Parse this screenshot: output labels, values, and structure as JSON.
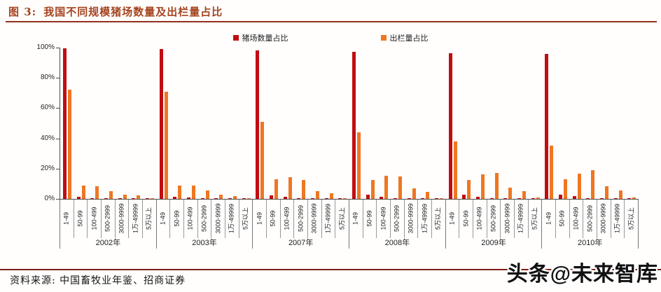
{
  "header": {
    "figure_label": "图 3:",
    "title": "我国不同规模猪场数量及出栏量占比"
  },
  "colors": {
    "title_text": "#A5431F",
    "title_rule": "#93301E",
    "bottom_rule": "#801E15",
    "farm_series": "#C00D12",
    "slaughter_series": "#EE7722",
    "axis": "#4d4d4d"
  },
  "legend": {
    "items": [
      {
        "label": "猪场数量占比",
        "color": "#C00D12"
      },
      {
        "label": "出栏量占比",
        "color": "#EE7722"
      }
    ]
  },
  "footer": {
    "source": "资料来源: 中国畜牧业年鉴、招商证券",
    "watermark": "头条@未来智库"
  },
  "chart_data": {
    "type": "bar",
    "title": "我国不同规模猪场数量及出栏量占比",
    "xlabel": "",
    "ylabel": "",
    "ylim": [
      0,
      100
    ],
    "yticks": [
      "0%",
      "20%",
      "40%",
      "60%",
      "80%",
      "100%"
    ],
    "grid": false,
    "legend_position": "top-center",
    "groups": [
      "2002年",
      "2003年",
      "2007年",
      "2008年",
      "2009年",
      "2010年"
    ],
    "categories": [
      "1-49",
      "50-99",
      "100-499",
      "500-2999",
      "3000-9999",
      "1万-49999",
      "5万以上"
    ],
    "series": [
      {
        "name": "猪场数量占比",
        "key": "farm-count-share",
        "color": "#C00D12",
        "values": [
          [
            99.5,
            1.2,
            0.6,
            0.3,
            0.2,
            0.1,
            0.05
          ],
          [
            99.0,
            1.5,
            0.8,
            0.4,
            0.2,
            0.1,
            0.05
          ],
          [
            98.0,
            2.5,
            1.2,
            0.5,
            0.2,
            0.1,
            0.05
          ],
          [
            97.0,
            3.0,
            1.5,
            0.6,
            0.3,
            0.1,
            0.05
          ],
          [
            96.5,
            3.0,
            1.6,
            0.6,
            0.3,
            0.1,
            0.05
          ],
          [
            96.0,
            3.0,
            1.8,
            0.7,
            0.3,
            0.15,
            0.05
          ]
        ]
      },
      {
        "name": "出栏量占比",
        "key": "slaughter-share",
        "color": "#EE7722",
        "values": [
          [
            72.0,
            9.0,
            8.5,
            5.0,
            3.0,
            2.5,
            0.5
          ],
          [
            71.0,
            9.0,
            9.0,
            5.5,
            3.0,
            2.0,
            0.5
          ],
          [
            51.0,
            13.0,
            14.5,
            12.5,
            5.0,
            3.5,
            0.5
          ],
          [
            44.0,
            12.5,
            15.5,
            15.0,
            7.0,
            4.5,
            0.5
          ],
          [
            38.0,
            12.5,
            16.0,
            17.0,
            7.5,
            5.0,
            1.0
          ],
          [
            35.0,
            13.0,
            16.5,
            19.0,
            8.5,
            5.5,
            1.0
          ]
        ]
      }
    ]
  }
}
